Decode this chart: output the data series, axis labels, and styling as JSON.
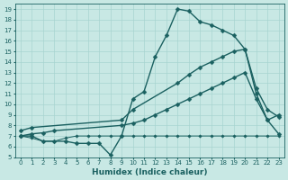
{
  "xlabel": "Humidex (Indice chaleur)",
  "xlim": [
    -0.5,
    23.5
  ],
  "ylim": [
    5,
    19.5
  ],
  "yticks": [
    5,
    6,
    7,
    8,
    9,
    10,
    11,
    12,
    13,
    14,
    15,
    16,
    17,
    18,
    19
  ],
  "xticks": [
    0,
    1,
    2,
    3,
    4,
    5,
    6,
    7,
    8,
    9,
    10,
    11,
    12,
    13,
    14,
    15,
    16,
    17,
    18,
    19,
    20,
    21,
    22,
    23
  ],
  "bg_color": "#c8e8e4",
  "line_color": "#1a6060",
  "grid_color": "#a8d4d0",
  "series": [
    {
      "x": [
        0,
        1,
        2,
        3,
        4,
        5,
        6,
        7,
        8,
        9,
        10,
        11,
        12,
        13,
        14,
        15,
        16,
        17,
        18,
        19,
        20,
        21,
        22,
        23
      ],
      "y": [
        7,
        7,
        6.5,
        6.5,
        6.5,
        6.3,
        6.3,
        6.3,
        5.2,
        7,
        10.5,
        11.2,
        14.5,
        16.5,
        19.0,
        18.8,
        17.8,
        17.5,
        17.0,
        16.5,
        15.2,
        11.0,
        8.5,
        9.0
      ],
      "marker": "D",
      "markersize": 2.5,
      "linewidth": 1.0
    },
    {
      "x": [
        0,
        1,
        2,
        3,
        4,
        5,
        6,
        7,
        8,
        9,
        10,
        11,
        12,
        13,
        14,
        15,
        16,
        17,
        18,
        19,
        20,
        21,
        22,
        23
      ],
      "y": [
        7,
        6.8,
        6.5,
        6.5,
        6.8,
        7,
        7,
        7,
        7,
        7,
        7,
        7,
        7,
        7,
        7,
        7,
        7,
        7,
        7,
        7,
        7,
        7,
        7,
        7
      ],
      "marker": "D",
      "markersize": 1.8,
      "linewidth": 0.7
    },
    {
      "x": [
        0,
        1,
        2,
        3,
        9,
        10,
        11,
        12,
        13,
        14,
        15,
        16,
        17,
        18,
        19,
        20,
        21,
        22,
        23
      ],
      "y": [
        7,
        7.2,
        7.3,
        7.5,
        8.0,
        8.2,
        8.5,
        9.0,
        9.5,
        10.0,
        10.5,
        11.0,
        11.5,
        12.0,
        12.5,
        13.0,
        10.5,
        8.5,
        7.2
      ],
      "marker": "D",
      "markersize": 2.5,
      "linewidth": 1.0
    },
    {
      "x": [
        0,
        1,
        9,
        10,
        14,
        15,
        16,
        17,
        18,
        19,
        20,
        21,
        22,
        23
      ],
      "y": [
        7.5,
        7.8,
        8.5,
        9.5,
        12.0,
        12.8,
        13.5,
        14.0,
        14.5,
        15.0,
        15.2,
        11.5,
        9.5,
        8.8
      ],
      "marker": "D",
      "markersize": 2.5,
      "linewidth": 1.0
    }
  ]
}
